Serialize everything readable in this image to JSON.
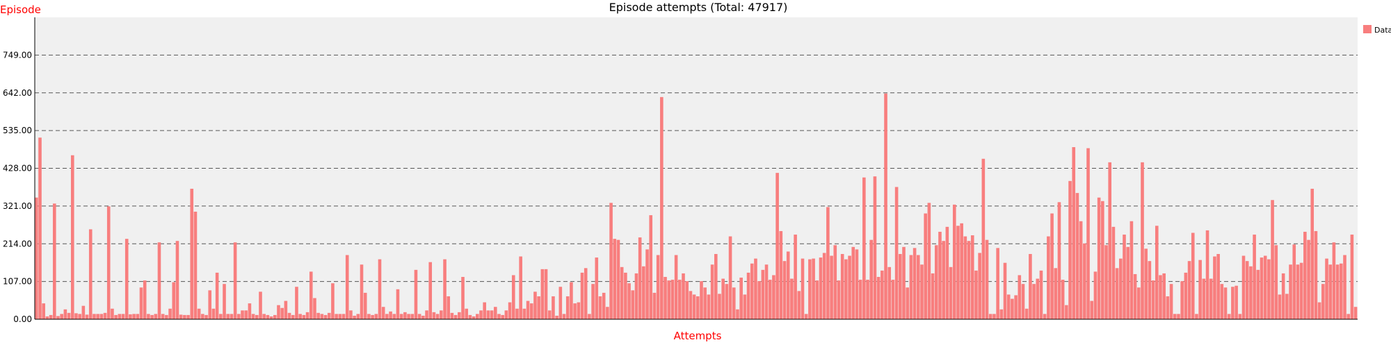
{
  "chart_data": {
    "type": "bar",
    "title": "Episode attempts (Total: 47917)",
    "xlabel": "Attempts",
    "ylabel": "Episode",
    "ylim": [
      0,
      856
    ],
    "yticks": [
      "0.00",
      "107.00",
      "214.00",
      "321.00",
      "428.00",
      "535.00",
      "642.00",
      "749.00"
    ],
    "grid": "horizontal dashed",
    "legend": {
      "position": "top-right",
      "entries": [
        "Data"
      ]
    },
    "colors": {
      "bar": "#f87e7e",
      "plot_bg": "#f0f0f0",
      "axis_titles": "#ff0000",
      "grid": "#555555"
    },
    "values": [
      345,
      515,
      45,
      8,
      12,
      328,
      9,
      15,
      28,
      18,
      465,
      17,
      15,
      38,
      13,
      255,
      15,
      15,
      15,
      18,
      320,
      30,
      12,
      15,
      15,
      228,
      14,
      15,
      15,
      90,
      110,
      15,
      12,
      15,
      218,
      15,
      12,
      30,
      105,
      222,
      13,
      12,
      12,
      370,
      305,
      30,
      15,
      12,
      82,
      30,
      132,
      15,
      100,
      15,
      15,
      218,
      15,
      25,
      25,
      45,
      15,
      12,
      78,
      15,
      12,
      8,
      12,
      40,
      32,
      52,
      18,
      12,
      92,
      15,
      12,
      20,
      135,
      60,
      18,
      15,
      12,
      18,
      102,
      15,
      15,
      15,
      182,
      25,
      10,
      15,
      155,
      75,
      15,
      12,
      15,
      170,
      35,
      15,
      22,
      15,
      85,
      15,
      20,
      15,
      15,
      140,
      15,
      10,
      25,
      162,
      20,
      15,
      25,
      170,
      65,
      18,
      12,
      20,
      120,
      30,
      12,
      8,
      15,
      25,
      48,
      25,
      25,
      35,
      15,
      12,
      25,
      48,
      125,
      30,
      178,
      30,
      52,
      45,
      78,
      65,
      142,
      142,
      25,
      65,
      10,
      92,
      15,
      65,
      105,
      45,
      48,
      132,
      145,
      15,
      100,
      175,
      65,
      75,
      35,
      330,
      228,
      225,
      148,
      132,
      102,
      82,
      130,
      232,
      150,
      198,
      295,
      75,
      182,
      630,
      120,
      110,
      112,
      182,
      112,
      130,
      108,
      80,
      70,
      65,
      108,
      90,
      70,
      155,
      185,
      72,
      115,
      100,
      235,
      90,
      28,
      118,
      70,
      132,
      158,
      172,
      108,
      140,
      155,
      112,
      125,
      415,
      250,
      165,
      192,
      115,
      240,
      80,
      172,
      15,
      170,
      172,
      110,
      175,
      188,
      318,
      180,
      210,
      110,
      185,
      170,
      180,
      205,
      198,
      112,
      402,
      112,
      225,
      405,
      120,
      138,
      640,
      148,
      112,
      375,
      185,
      205,
      90,
      182,
      202,
      182,
      155,
      300,
      330,
      130,
      210,
      248,
      222,
      262,
      148,
      325,
      265,
      272,
      235,
      222,
      238,
      138,
      188,
      455,
      225,
      15,
      15,
      202,
      28,
      160,
      70,
      58,
      68,
      125,
      100,
      30,
      185,
      100,
      115,
      138,
      15,
      235,
      300,
      145,
      332,
      112,
      40,
      392,
      488,
      358,
      278,
      215,
      485,
      52,
      135,
      345,
      335,
      210,
      445,
      262,
      145,
      172,
      240,
      205,
      278,
      128,
      90,
      445,
      200,
      165,
      110,
      265,
      125,
      130,
      65,
      100,
      15,
      15,
      108,
      132,
      165,
      245,
      15,
      168,
      115,
      252,
      115,
      178,
      185,
      100,
      90,
      15,
      92,
      95,
      15,
      180,
      165,
      150,
      240,
      140,
      175,
      180,
      170,
      338,
      210,
      70,
      130,
      72,
      155,
      212,
      155,
      160,
      248,
      225,
      370,
      250,
      48,
      100,
      172,
      155,
      218,
      155,
      158,
      182,
      15,
      240,
      35
    ]
  }
}
